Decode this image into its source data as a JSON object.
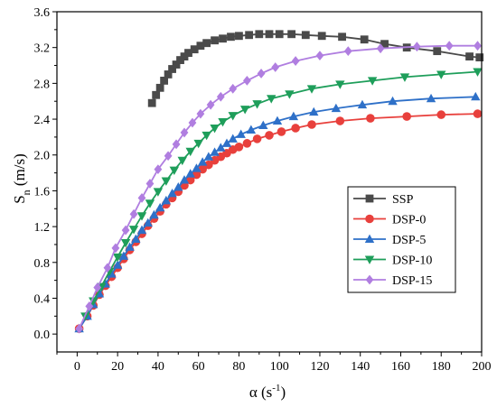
{
  "chart_data": {
    "type": "line",
    "xlabel": {
      "base": "α (s",
      "sup": "-1",
      "tail": ")"
    },
    "ylabel": {
      "base": "S",
      "sub": "n",
      "tail": " (m/s)"
    },
    "xlim": [
      -10,
      200
    ],
    "ylim": [
      -0.2,
      3.6
    ],
    "xticks": [
      0,
      20,
      40,
      60,
      80,
      100,
      120,
      140,
      160,
      180,
      200
    ],
    "yticks": [
      0.0,
      0.4,
      0.8,
      1.2,
      1.6,
      2.0,
      2.4,
      2.8,
      3.2,
      3.6
    ],
    "ytick_labels": [
      "0.0",
      "0.4",
      "0.8",
      "1.2",
      "1.6",
      "2.0",
      "2.4",
      "2.8",
      "3.2",
      "3.6"
    ],
    "legend_position": "center-right",
    "series": [
      {
        "name": "SSP",
        "color": "#4a4a4a",
        "marker": "square",
        "points": [
          [
            37,
            2.58
          ],
          [
            39,
            2.67
          ],
          [
            41,
            2.75
          ],
          [
            43,
            2.83
          ],
          [
            45,
            2.9
          ],
          [
            47,
            2.96
          ],
          [
            49,
            3.01
          ],
          [
            51,
            3.06
          ],
          [
            53,
            3.1
          ],
          [
            55,
            3.14
          ],
          [
            58,
            3.18
          ],
          [
            61,
            3.22
          ],
          [
            64,
            3.25
          ],
          [
            68,
            3.28
          ],
          [
            72,
            3.3
          ],
          [
            76,
            3.32
          ],
          [
            80,
            3.33
          ],
          [
            85,
            3.34
          ],
          [
            90,
            3.35
          ],
          [
            95,
            3.35
          ],
          [
            100,
            3.35
          ],
          [
            106,
            3.35
          ],
          [
            113,
            3.34
          ],
          [
            121,
            3.33
          ],
          [
            131,
            3.32
          ],
          [
            142,
            3.29
          ],
          [
            152,
            3.24
          ],
          [
            163,
            3.2
          ],
          [
            178,
            3.16
          ],
          [
            194,
            3.1
          ],
          [
            199,
            3.09
          ]
        ]
      },
      {
        "name": "DSP-0",
        "color": "#e8403c",
        "marker": "circle",
        "points": [
          [
            1,
            0.06
          ],
          [
            5,
            0.2
          ],
          [
            8,
            0.32
          ],
          [
            11,
            0.44
          ],
          [
            14,
            0.54
          ],
          [
            17,
            0.64
          ],
          [
            20,
            0.74
          ],
          [
            23,
            0.84
          ],
          [
            26,
            0.94
          ],
          [
            29,
            1.03
          ],
          [
            32,
            1.12
          ],
          [
            35,
            1.21
          ],
          [
            38,
            1.29
          ],
          [
            41,
            1.37
          ],
          [
            44,
            1.45
          ],
          [
            47,
            1.52
          ],
          [
            50,
            1.59
          ],
          [
            53,
            1.66
          ],
          [
            56,
            1.72
          ],
          [
            59,
            1.78
          ],
          [
            62,
            1.84
          ],
          [
            65,
            1.89
          ],
          [
            68,
            1.94
          ],
          [
            71,
            1.98
          ],
          [
            74,
            2.02
          ],
          [
            77,
            2.06
          ],
          [
            80,
            2.09
          ],
          [
            84,
            2.13
          ],
          [
            89,
            2.18
          ],
          [
            95,
            2.22
          ],
          [
            101,
            2.26
          ],
          [
            108,
            2.3
          ],
          [
            116,
            2.34
          ],
          [
            130,
            2.38
          ],
          [
            145,
            2.41
          ],
          [
            163,
            2.43
          ],
          [
            180,
            2.45
          ],
          [
            198,
            2.46
          ]
        ]
      },
      {
        "name": "DSP-5",
        "color": "#2e70c8",
        "marker": "triangle-up",
        "points": [
          [
            1,
            0.06
          ],
          [
            5,
            0.2
          ],
          [
            8,
            0.33
          ],
          [
            11,
            0.45
          ],
          [
            14,
            0.56
          ],
          [
            17,
            0.67
          ],
          [
            20,
            0.77
          ],
          [
            23,
            0.87
          ],
          [
            26,
            0.97
          ],
          [
            29,
            1.06
          ],
          [
            32,
            1.16
          ],
          [
            35,
            1.24
          ],
          [
            38,
            1.33
          ],
          [
            41,
            1.41
          ],
          [
            44,
            1.49
          ],
          [
            47,
            1.57
          ],
          [
            50,
            1.64
          ],
          [
            53,
            1.72
          ],
          [
            56,
            1.79
          ],
          [
            59,
            1.85
          ],
          [
            62,
            1.92
          ],
          [
            65,
            1.98
          ],
          [
            68,
            2.03
          ],
          [
            71,
            2.08
          ],
          [
            74,
            2.13
          ],
          [
            77,
            2.18
          ],
          [
            81,
            2.23
          ],
          [
            86,
            2.28
          ],
          [
            92,
            2.33
          ],
          [
            99,
            2.38
          ],
          [
            107,
            2.43
          ],
          [
            117,
            2.48
          ],
          [
            128,
            2.52
          ],
          [
            141,
            2.56
          ],
          [
            156,
            2.6
          ],
          [
            175,
            2.63
          ],
          [
            197,
            2.65
          ]
        ]
      },
      {
        "name": "DSP-10",
        "color": "#1e9e5a",
        "marker": "triangle-down",
        "points": [
          [
            4,
            0.2
          ],
          [
            8,
            0.37
          ],
          [
            12,
            0.53
          ],
          [
            16,
            0.7
          ],
          [
            20,
            0.86
          ],
          [
            24,
            1.02
          ],
          [
            28,
            1.17
          ],
          [
            32,
            1.32
          ],
          [
            36,
            1.46
          ],
          [
            40,
            1.59
          ],
          [
            44,
            1.71
          ],
          [
            48,
            1.83
          ],
          [
            52,
            1.94
          ],
          [
            56,
            2.04
          ],
          [
            60,
            2.13
          ],
          [
            64,
            2.22
          ],
          [
            68,
            2.3
          ],
          [
            72,
            2.37
          ],
          [
            77,
            2.44
          ],
          [
            83,
            2.51
          ],
          [
            89,
            2.57
          ],
          [
            96,
            2.63
          ],
          [
            105,
            2.68
          ],
          [
            116,
            2.74
          ],
          [
            130,
            2.79
          ],
          [
            146,
            2.83
          ],
          [
            162,
            2.87
          ],
          [
            180,
            2.9
          ],
          [
            198,
            2.93
          ]
        ]
      },
      {
        "name": "DSP-15",
        "color": "#b07ee0",
        "marker": "diamond",
        "points": [
          [
            1,
            0.06
          ],
          [
            6,
            0.31
          ],
          [
            10,
            0.52
          ],
          [
            15,
            0.74
          ],
          [
            19,
            0.96
          ],
          [
            24,
            1.16
          ],
          [
            28,
            1.34
          ],
          [
            32,
            1.52
          ],
          [
            36,
            1.68
          ],
          [
            40,
            1.84
          ],
          [
            45,
            1.99
          ],
          [
            49,
            2.12
          ],
          [
            53,
            2.25
          ],
          [
            57,
            2.36
          ],
          [
            61,
            2.46
          ],
          [
            66,
            2.56
          ],
          [
            71,
            2.65
          ],
          [
            77,
            2.74
          ],
          [
            84,
            2.83
          ],
          [
            91,
            2.91
          ],
          [
            98,
            2.98
          ],
          [
            108,
            3.05
          ],
          [
            120,
            3.11
          ],
          [
            134,
            3.16
          ],
          [
            150,
            3.19
          ],
          [
            168,
            3.21
          ],
          [
            184,
            3.22
          ],
          [
            198,
            3.22
          ]
        ]
      }
    ]
  }
}
